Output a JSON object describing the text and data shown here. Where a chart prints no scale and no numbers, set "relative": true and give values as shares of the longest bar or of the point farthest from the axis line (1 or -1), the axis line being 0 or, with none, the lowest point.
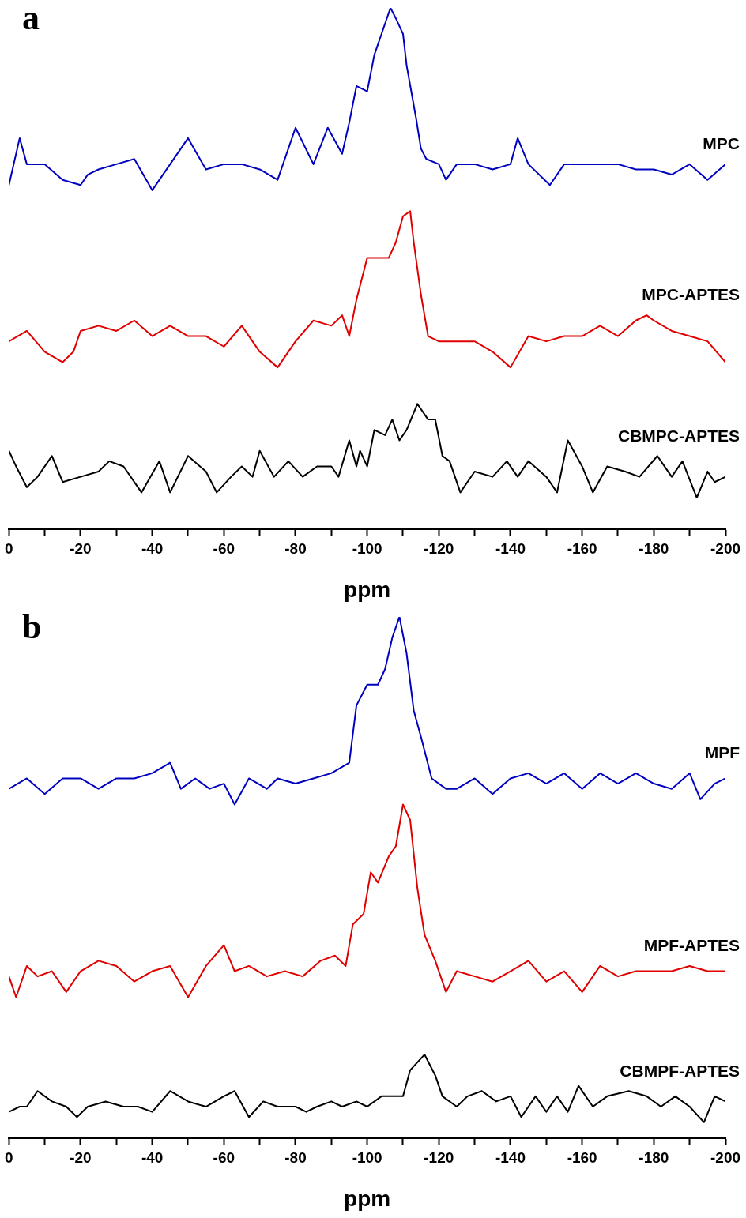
{
  "chart_data": [
    {
      "type": "line",
      "title": "a",
      "xlabel": "ppm",
      "relative": true,
      "xlim": [
        0,
        -200
      ],
      "xticks": [
        0,
        {
          "value": -10,
          "label": null
        },
        -20,
        {
          "value": -30,
          "label": null
        },
        -40,
        {
          "value": -50,
          "label": null
        },
        -60,
        {
          "value": -70,
          "label": null
        },
        -80,
        {
          "value": -90,
          "label": null
        },
        -100,
        {
          "value": -110,
          "label": null
        },
        -120,
        {
          "value": -130,
          "label": null
        },
        -140,
        {
          "value": -150,
          "label": null
        },
        -160,
        {
          "value": -170,
          "label": null
        },
        -180,
        {
          "value": -190,
          "label": null
        },
        -200
      ],
      "grid": false,
      "legend": false,
      "marker": "none",
      "line_style": "solid",
      "series": [
        {
          "name": "MPC",
          "color": "#0000c0",
          "x": [
            0,
            -3,
            -5,
            -10,
            -15,
            -20,
            -22,
            -25,
            -30,
            -35,
            -40,
            -45,
            -50,
            -55,
            -60,
            -65,
            -70,
            -75,
            -80,
            -85,
            -89,
            -93,
            -95,
            -97,
            -100,
            -102,
            -104,
            -106.5,
            -108,
            -110,
            -111,
            -113.6,
            -115,
            -116.5,
            -120,
            -122,
            -125,
            -130,
            -135,
            -140,
            -142,
            -145,
            -151,
            -155,
            -160,
            -165,
            -170,
            -175,
            -180,
            -185,
            -190,
            -195,
            -200
          ],
          "values": [
            0.66,
            0.75,
            0.7,
            0.7,
            0.67,
            0.66,
            0.68,
            0.69,
            0.7,
            0.71,
            0.65,
            0.7,
            0.75,
            0.69,
            0.7,
            0.7,
            0.69,
            0.67,
            0.77,
            0.7,
            0.77,
            0.72,
            0.78,
            0.85,
            0.84,
            0.91,
            0.95,
            1,
            0.98,
            0.95,
            0.89,
            0.79,
            0.73,
            0.71,
            0.7,
            0.67,
            0.7,
            0.7,
            0.69,
            0.7,
            0.75,
            0.7,
            0.66,
            0.7,
            0.7,
            0.7,
            0.7,
            0.69,
            0.69,
            0.68,
            0.7,
            0.67,
            0.7
          ]
        },
        {
          "name": "MPC-APTES",
          "color": "#e00000",
          "x": [
            0,
            -5,
            -10,
            -15,
            -18,
            -20,
            -25,
            -30,
            -35,
            -40,
            -45,
            -50,
            -55,
            -60,
            -65,
            -70,
            -75,
            -80,
            -85,
            -90,
            -93,
            -95,
            -97,
            -100,
            -103,
            -106,
            -108,
            -110,
            -112,
            -113,
            -115,
            -117,
            -120,
            -125,
            -130,
            -135,
            -140,
            -145,
            -150,
            -155,
            -160,
            -165,
            -170,
            -175,
            -178,
            -180,
            -185,
            -190,
            -195,
            -200
          ],
          "values": [
            0.36,
            0.38,
            0.34,
            0.32,
            0.34,
            0.38,
            0.39,
            0.38,
            0.4,
            0.37,
            0.39,
            0.37,
            0.37,
            0.35,
            0.39,
            0.34,
            0.31,
            0.36,
            0.4,
            0.39,
            0.41,
            0.37,
            0.44,
            0.52,
            0.52,
            0.52,
            0.55,
            0.6,
            0.61,
            0.55,
            0.45,
            0.37,
            0.36,
            0.36,
            0.36,
            0.34,
            0.31,
            0.37,
            0.36,
            0.37,
            0.37,
            0.39,
            0.37,
            0.4,
            0.41,
            0.4,
            0.38,
            0.37,
            0.36,
            0.32
          ]
        },
        {
          "name": "CBMPC-APTES",
          "color": "#000000",
          "x": [
            0,
            -2,
            -5,
            -8,
            -12,
            -15,
            -20,
            -25,
            -28,
            -32,
            -37,
            -42,
            -45,
            -50,
            -55,
            -58,
            -62,
            -65,
            -68,
            -70,
            -74,
            -78,
            -82,
            -86,
            -90,
            -92,
            -95,
            -97,
            -98,
            -100,
            -102,
            -105,
            -107,
            -109,
            -111,
            -114,
            -117,
            -119,
            -121,
            -123,
            -126,
            -130,
            -135,
            -139,
            -142,
            -145,
            -150,
            -153,
            -156,
            -160,
            -163,
            -167,
            -172,
            -176,
            -181,
            -185,
            -188,
            -192,
            -195,
            -197,
            -200
          ],
          "values": [
            0.15,
            0.12,
            0.08,
            0.1,
            0.14,
            0.09,
            0.1,
            0.11,
            0.13,
            0.12,
            0.07,
            0.13,
            0.07,
            0.14,
            0.11,
            0.07,
            0.1,
            0.12,
            0.1,
            0.15,
            0.1,
            0.13,
            0.1,
            0.12,
            0.12,
            0.1,
            0.17,
            0.12,
            0.15,
            0.12,
            0.19,
            0.18,
            0.21,
            0.17,
            0.19,
            0.24,
            0.21,
            0.21,
            0.14,
            0.13,
            0.07,
            0.11,
            0.1,
            0.13,
            0.1,
            0.13,
            0.1,
            0.07,
            0.17,
            0.12,
            0.07,
            0.12,
            0.11,
            0.1,
            0.14,
            0.1,
            0.13,
            0.06,
            0.11,
            0.09,
            0.1
          ]
        }
      ]
    },
    {
      "type": "line",
      "title": "b",
      "xlabel": "ppm",
      "relative": true,
      "xlim": [
        0,
        -200
      ],
      "xticks": [
        0,
        {
          "value": -10,
          "label": null
        },
        -20,
        {
          "value": -30,
          "label": null
        },
        -40,
        {
          "value": -50,
          "label": null
        },
        -60,
        {
          "value": -70,
          "label": null
        },
        -80,
        {
          "value": -90,
          "label": null
        },
        -100,
        {
          "value": -110,
          "label": null
        },
        -120,
        {
          "value": -130,
          "label": null
        },
        -140,
        {
          "value": -150,
          "label": null
        },
        -160,
        {
          "value": -170,
          "label": null
        },
        -180,
        {
          "value": -190,
          "label": null
        },
        -200
      ],
      "grid": false,
      "legend": false,
      "marker": "none",
      "line_style": "solid",
      "series": [
        {
          "name": "MPF",
          "color": "#0000c0",
          "x": [
            0,
            -5,
            -10,
            -15,
            -20,
            -25,
            -30,
            -35,
            -40,
            -45,
            -48,
            -52,
            -56,
            -60,
            -63,
            -67,
            -72,
            -75,
            -80,
            -85,
            -90,
            -95,
            -97,
            -100,
            -103,
            -105,
            -107,
            -109,
            -111,
            -113,
            -115,
            -118,
            -122,
            -125,
            -130,
            -135,
            -140,
            -145,
            -150,
            -155,
            -160,
            -165,
            -170,
            -175,
            -180,
            -185,
            -190,
            -193,
            -197,
            -200
          ],
          "values": [
            0.67,
            0.69,
            0.66,
            0.69,
            0.69,
            0.67,
            0.69,
            0.69,
            0.7,
            0.72,
            0.67,
            0.69,
            0.67,
            0.68,
            0.64,
            0.69,
            0.67,
            0.69,
            0.68,
            0.69,
            0.7,
            0.72,
            0.83,
            0.87,
            0.87,
            0.9,
            0.96,
            1,
            0.93,
            0.82,
            0.77,
            0.69,
            0.67,
            0.67,
            0.69,
            0.66,
            0.69,
            0.7,
            0.68,
            0.7,
            0.67,
            0.7,
            0.68,
            0.7,
            0.68,
            0.67,
            0.7,
            0.65,
            0.68,
            0.69
          ]
        },
        {
          "name": "MPF-APTES",
          "color": "#e00000",
          "x": [
            0,
            -2,
            -5,
            -8,
            -12,
            -16,
            -20,
            -25,
            -30,
            -35,
            -40,
            -45,
            -50,
            -55,
            -60,
            -63,
            -67,
            -72,
            -77,
            -82,
            -87,
            -91,
            -94,
            -96,
            -99,
            -101,
            -103,
            -106,
            -108,
            -110,
            -112,
            -114,
            -116,
            -119,
            -122,
            -125,
            -130,
            -135,
            -140,
            -145,
            -150,
            -155,
            -160,
            -165,
            -170,
            -175,
            -180,
            -185,
            -190,
            -195,
            -200
          ],
          "values": [
            0.31,
            0.27,
            0.33,
            0.31,
            0.32,
            0.28,
            0.32,
            0.34,
            0.33,
            0.3,
            0.32,
            0.33,
            0.27,
            0.33,
            0.37,
            0.32,
            0.33,
            0.31,
            0.32,
            0.31,
            0.34,
            0.35,
            0.33,
            0.41,
            0.43,
            0.51,
            0.49,
            0.54,
            0.56,
            0.64,
            0.61,
            0.48,
            0.39,
            0.34,
            0.28,
            0.32,
            0.31,
            0.3,
            0.32,
            0.34,
            0.3,
            0.32,
            0.28,
            0.33,
            0.31,
            0.32,
            0.32,
            0.32,
            0.33,
            0.32,
            0.32
          ]
        },
        {
          "name": "CBMPF-APTES",
          "color": "#000000",
          "x": [
            0,
            -3,
            -5,
            -8,
            -12,
            -16,
            -19,
            -22,
            -27,
            -32,
            -36,
            -40,
            -45,
            -50,
            -55,
            -60,
            -63,
            -67,
            -71,
            -75,
            -80,
            -83,
            -86,
            -90,
            -93,
            -97,
            -100,
            -104,
            -110,
            -112,
            -116,
            -119,
            -121,
            -125,
            -128,
            -132,
            -136,
            -140,
            -143,
            -147,
            -150,
            -153,
            -156,
            -159,
            -163,
            -167,
            -173,
            -178,
            -182,
            -186,
            -190,
            -194,
            -197,
            -200
          ],
          "values": [
            0.05,
            0.06,
            0.06,
            0.09,
            0.07,
            0.06,
            0.04,
            0.06,
            0.07,
            0.06,
            0.06,
            0.05,
            0.09,
            0.07,
            0.06,
            0.08,
            0.09,
            0.04,
            0.07,
            0.06,
            0.06,
            0.05,
            0.06,
            0.07,
            0.06,
            0.07,
            0.06,
            0.08,
            0.08,
            0.13,
            0.16,
            0.12,
            0.08,
            0.06,
            0.08,
            0.09,
            0.07,
            0.08,
            0.04,
            0.08,
            0.05,
            0.08,
            0.05,
            0.1,
            0.06,
            0.08,
            0.09,
            0.08,
            0.06,
            0.08,
            0.06,
            0.03,
            0.08,
            0.07
          ]
        }
      ]
    }
  ]
}
